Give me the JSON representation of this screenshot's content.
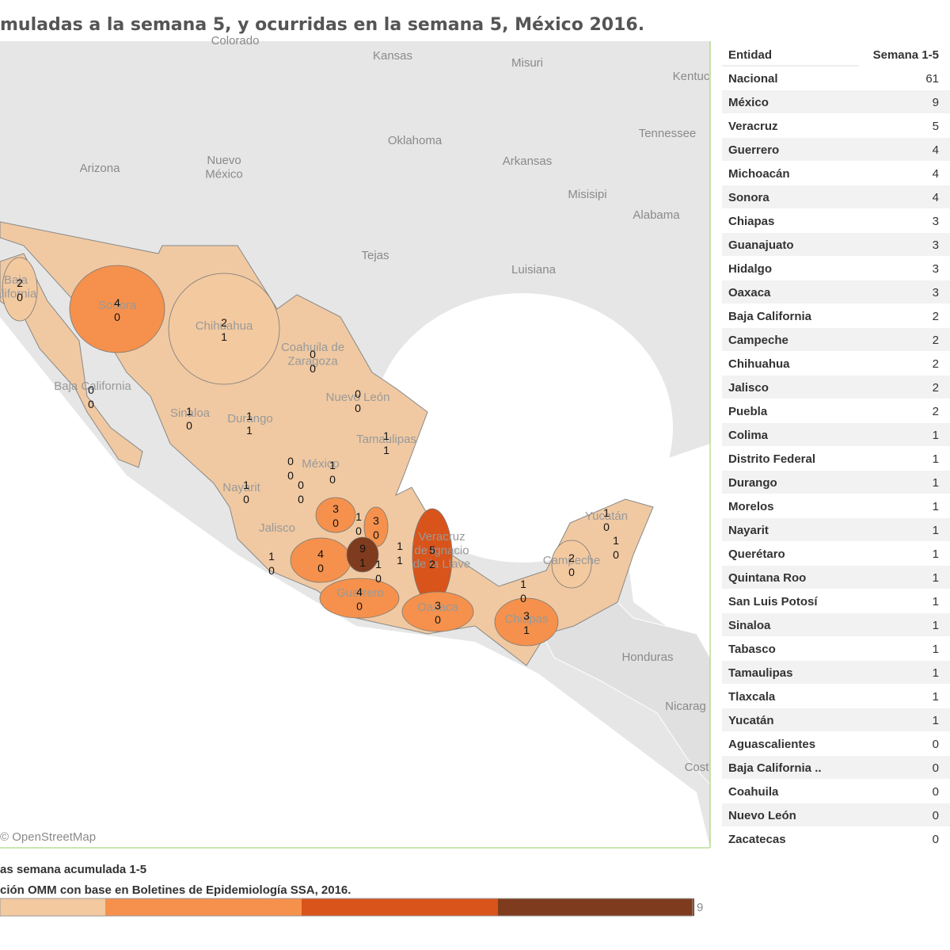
{
  "header": {
    "title": "muladas a la semana 5, y ocurridas en la semana 5, México 2016."
  },
  "map": {
    "base_labels": [
      "Colorado",
      "Kansas",
      "Misuri",
      "Kentuc",
      "Oklahoma",
      "Tennessee",
      "Arizona",
      "Nuevo\nMéxico",
      "Arkansas",
      "Misisipi",
      "Alabama",
      "Tejas",
      "Luisiana",
      "Honduras",
      "Nicarag",
      "Cost"
    ],
    "state_labels": [
      "Baja\nalifornia",
      "Sonora",
      "Chihuahua",
      "Coahuila de\nZaragoza",
      "Baja California",
      "Nuevo León",
      "Sinaloa",
      "Durango",
      "Tamaulipas",
      "México",
      "Nayarit",
      "Jalisco",
      "Veracruz\nde Ignacio\nde la Llave",
      "Guerrero",
      "Oaxaca",
      "Campeche",
      "Yucatán",
      "Chiapas"
    ],
    "counts": [
      [
        2,
        0
      ],
      [
        4,
        0
      ],
      [
        2,
        1
      ],
      [
        0,
        0
      ],
      [
        0,
        0
      ],
      [
        0,
        0
      ],
      [
        1,
        0
      ],
      [
        1,
        1
      ],
      [
        1,
        1
      ],
      [
        0,
        0
      ],
      [
        1,
        0
      ],
      [
        1,
        0
      ],
      [
        0,
        0
      ],
      [
        3,
        0
      ],
      [
        1,
        0
      ],
      [
        3,
        0
      ],
      [
        1,
        0
      ],
      [
        4,
        0
      ],
      [
        9,
        1
      ],
      [
        1,
        1
      ],
      [
        5,
        2
      ],
      [
        1,
        0
      ],
      [
        4,
        0
      ],
      [
        3,
        0
      ],
      [
        1,
        0
      ],
      [
        2,
        0
      ],
      [
        1,
        0
      ],
      [
        1,
        0
      ],
      [
        3,
        1
      ]
    ],
    "attribution": "© OpenStreetMap"
  },
  "table": {
    "columns": [
      "Entidad",
      "Semana 1-5"
    ],
    "rows": [
      [
        "Nacional",
        61
      ],
      [
        "México",
        9
      ],
      [
        "Veracruz",
        5
      ],
      [
        "Guerrero",
        4
      ],
      [
        "Michoacán",
        4
      ],
      [
        "Sonora",
        4
      ],
      [
        "Chiapas",
        3
      ],
      [
        "Guanajuato",
        3
      ],
      [
        "Hidalgo",
        3
      ],
      [
        "Oaxaca",
        3
      ],
      [
        "Baja California",
        2
      ],
      [
        "Campeche",
        2
      ],
      [
        "Chihuahua",
        2
      ],
      [
        "Jalisco",
        2
      ],
      [
        "Puebla",
        2
      ],
      [
        "Colima",
        1
      ],
      [
        "Distrito Federal",
        1
      ],
      [
        "Durango",
        1
      ],
      [
        "Morelos",
        1
      ],
      [
        "Nayarit",
        1
      ],
      [
        "Querétaro",
        1
      ],
      [
        "Quintana Roo",
        1
      ],
      [
        "San Luis Potosí",
        1
      ],
      [
        "Sinaloa",
        1
      ],
      [
        "Tabasco",
        1
      ],
      [
        "Tamaulipas",
        1
      ],
      [
        "Tlaxcala",
        1
      ],
      [
        "Yucatán",
        1
      ],
      [
        "Aguascalientes",
        0
      ],
      [
        "Baja California ..",
        0
      ],
      [
        "Coahuila",
        0
      ],
      [
        "Nuevo León",
        0
      ],
      [
        "Zacatecas",
        0
      ]
    ]
  },
  "legend": {
    "title": "as semana acumulada 1-5",
    "source": "ción OMM con base en Boletines de Epidemiología SSA, 2016.",
    "colors": [
      "#f3c9a0",
      "#f5914c",
      "#d9541a",
      "#7f3b1d"
    ],
    "max": 9
  }
}
